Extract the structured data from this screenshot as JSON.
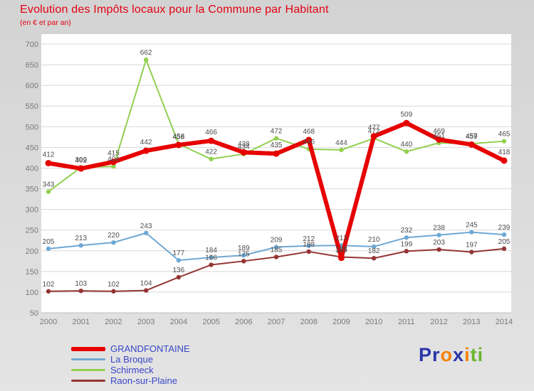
{
  "title": "Evolution des Impôts locaux pour la Commune par Habitant",
  "subtitle": "(en € et par an)",
  "colors": {
    "title_red": "#e30010",
    "legend_text": "#3a46c8",
    "data_label_gray": "#4d4d4d",
    "axis_text_gray": "#7a7a7a",
    "plot_background": "#ffffff",
    "page_background": "#d9d9d9",
    "gridline": "#d8d8d8"
  },
  "chart_data": {
    "type": "line",
    "x": [
      "2000",
      "2001",
      "2002",
      "2003",
      "2004",
      "2005",
      "2006",
      "2007",
      "2008",
      "2009",
      "2010",
      "2011",
      "2012",
      "2013",
      "2014"
    ],
    "ylim": [
      50,
      700
    ],
    "yticks": [
      50,
      100,
      150,
      200,
      250,
      300,
      350,
      400,
      450,
      500,
      550,
      600,
      650,
      700
    ],
    "grid": "horizontal",
    "legend_position": "bottom-left",
    "series": [
      {
        "name": "GRANDFONTAINE",
        "color": "#e60000",
        "width": 6,
        "marker": 4.5,
        "values": [
          412,
          399,
          415,
          442,
          456,
          466,
          438,
          435,
          468,
          183,
          477,
          509,
          469,
          457,
          418
        ]
      },
      {
        "name": "La Broque",
        "color": "#6fa8d4",
        "width": 2,
        "marker": 3.2,
        "values": [
          205,
          213,
          220,
          243,
          177,
          184,
          189,
          209,
          212,
          213,
          210,
          232,
          238,
          245,
          239
        ]
      },
      {
        "name": "Schirmeck",
        "color": "#92d050",
        "width": 2,
        "marker": 3.2,
        "values": [
          343,
          402,
          404,
          662,
          458,
          422,
          434,
          472,
          446,
          444,
          472,
          440,
          461,
          459,
          465
        ]
      },
      {
        "name": "Raon-sur-Plaine",
        "color": "#943634",
        "width": 2,
        "marker": 3.2,
        "values": [
          102,
          103,
          102,
          104,
          136,
          166,
          175,
          185,
          198,
          185,
          182,
          199,
          203,
          197,
          205
        ]
      }
    ]
  },
  "brand": {
    "name": "Proxiti",
    "letters": [
      {
        "ch": "P",
        "color": "#2a35a8"
      },
      {
        "ch": "r",
        "color": "#2a35a8"
      },
      {
        "ch": "o",
        "color": "#f5820a"
      },
      {
        "ch": "x",
        "color": "#2a35a8"
      },
      {
        "ch": "i",
        "color": "#f5820a"
      },
      {
        "ch": "t",
        "color": "#6ab42d"
      },
      {
        "ch": "i",
        "color": "#6ab42d"
      }
    ]
  }
}
